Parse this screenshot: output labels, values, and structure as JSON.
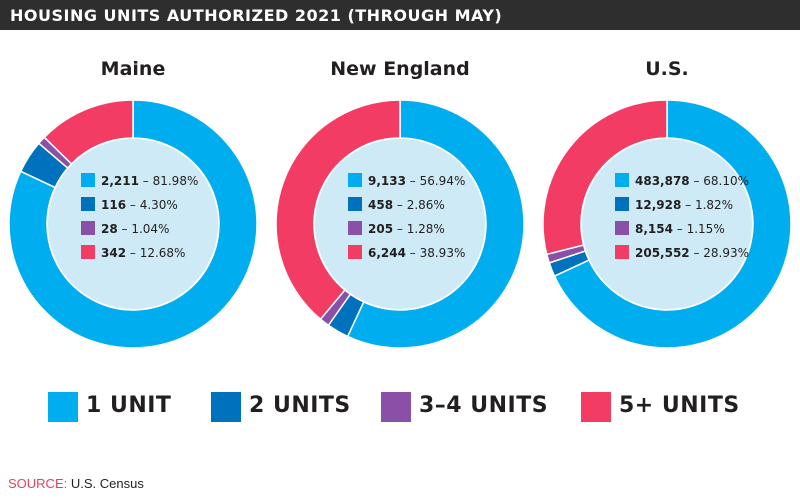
{
  "header": {
    "title": "HOUSING UNITS AUTHORIZED 2021 (THROUGH MAY)"
  },
  "colors": {
    "header_bg": "#2e2e2e",
    "one_unit": "#00aeef",
    "two_units": "#0071bc",
    "three_four_units": "#8a4fa6",
    "five_plus_units": "#f23c64",
    "inner_fill": "#cdeaf6"
  },
  "legend": [
    {
      "label": "1 UNIT",
      "color": "#00aeef",
      "icon": "square-swatch"
    },
    {
      "label": "2 UNITS",
      "color": "#0071bc",
      "icon": "square-swatch"
    },
    {
      "label": "3–4 UNITS",
      "color": "#8a4fa6",
      "icon": "square-swatch"
    },
    {
      "label": "5+ UNITS",
      "color": "#f23c64",
      "icon": "square-swatch"
    }
  ],
  "chart_data": [
    {
      "type": "pie",
      "title": "Maine",
      "categories": [
        "1 UNIT",
        "2 UNITS",
        "3–4 UNITS",
        "5+ UNITS"
      ],
      "values": [
        2211,
        116,
        28,
        342
      ],
      "percent_labels": [
        "81.98%",
        "4.30%",
        "1.04%",
        "12.68%"
      ],
      "value_labels": [
        "2,211",
        "116",
        "28",
        "342"
      ],
      "colors": [
        "#00aeef",
        "#0071bc",
        "#8a4fa6",
        "#f23c64"
      ]
    },
    {
      "type": "pie",
      "title": "New England",
      "categories": [
        "1 UNIT",
        "2 UNITS",
        "3–4 UNITS",
        "5+ UNITS"
      ],
      "values": [
        9133,
        458,
        205,
        6244
      ],
      "percent_labels": [
        "56.94%",
        "2.86%",
        "1.28%",
        "38.93%"
      ],
      "value_labels": [
        "9,133",
        "458",
        "205",
        "6,244"
      ],
      "colors": [
        "#00aeef",
        "#0071bc",
        "#8a4fa6",
        "#f23c64"
      ]
    },
    {
      "type": "pie",
      "title": "U.S.",
      "categories": [
        "1 UNIT",
        "2 UNITS",
        "3–4 UNITS",
        "5+ UNITS"
      ],
      "values": [
        483878,
        12928,
        8154,
        205552
      ],
      "percent_labels": [
        "68.10%",
        "1.82%",
        "1.15%",
        "28.93%"
      ],
      "value_labels": [
        "483,878",
        "12,928",
        "8,154",
        "205,552"
      ],
      "colors": [
        "#00aeef",
        "#0071bc",
        "#8a4fa6",
        "#f23c64"
      ]
    }
  ],
  "source": {
    "label": "SOURCE:",
    "text": "U.S. Census"
  }
}
